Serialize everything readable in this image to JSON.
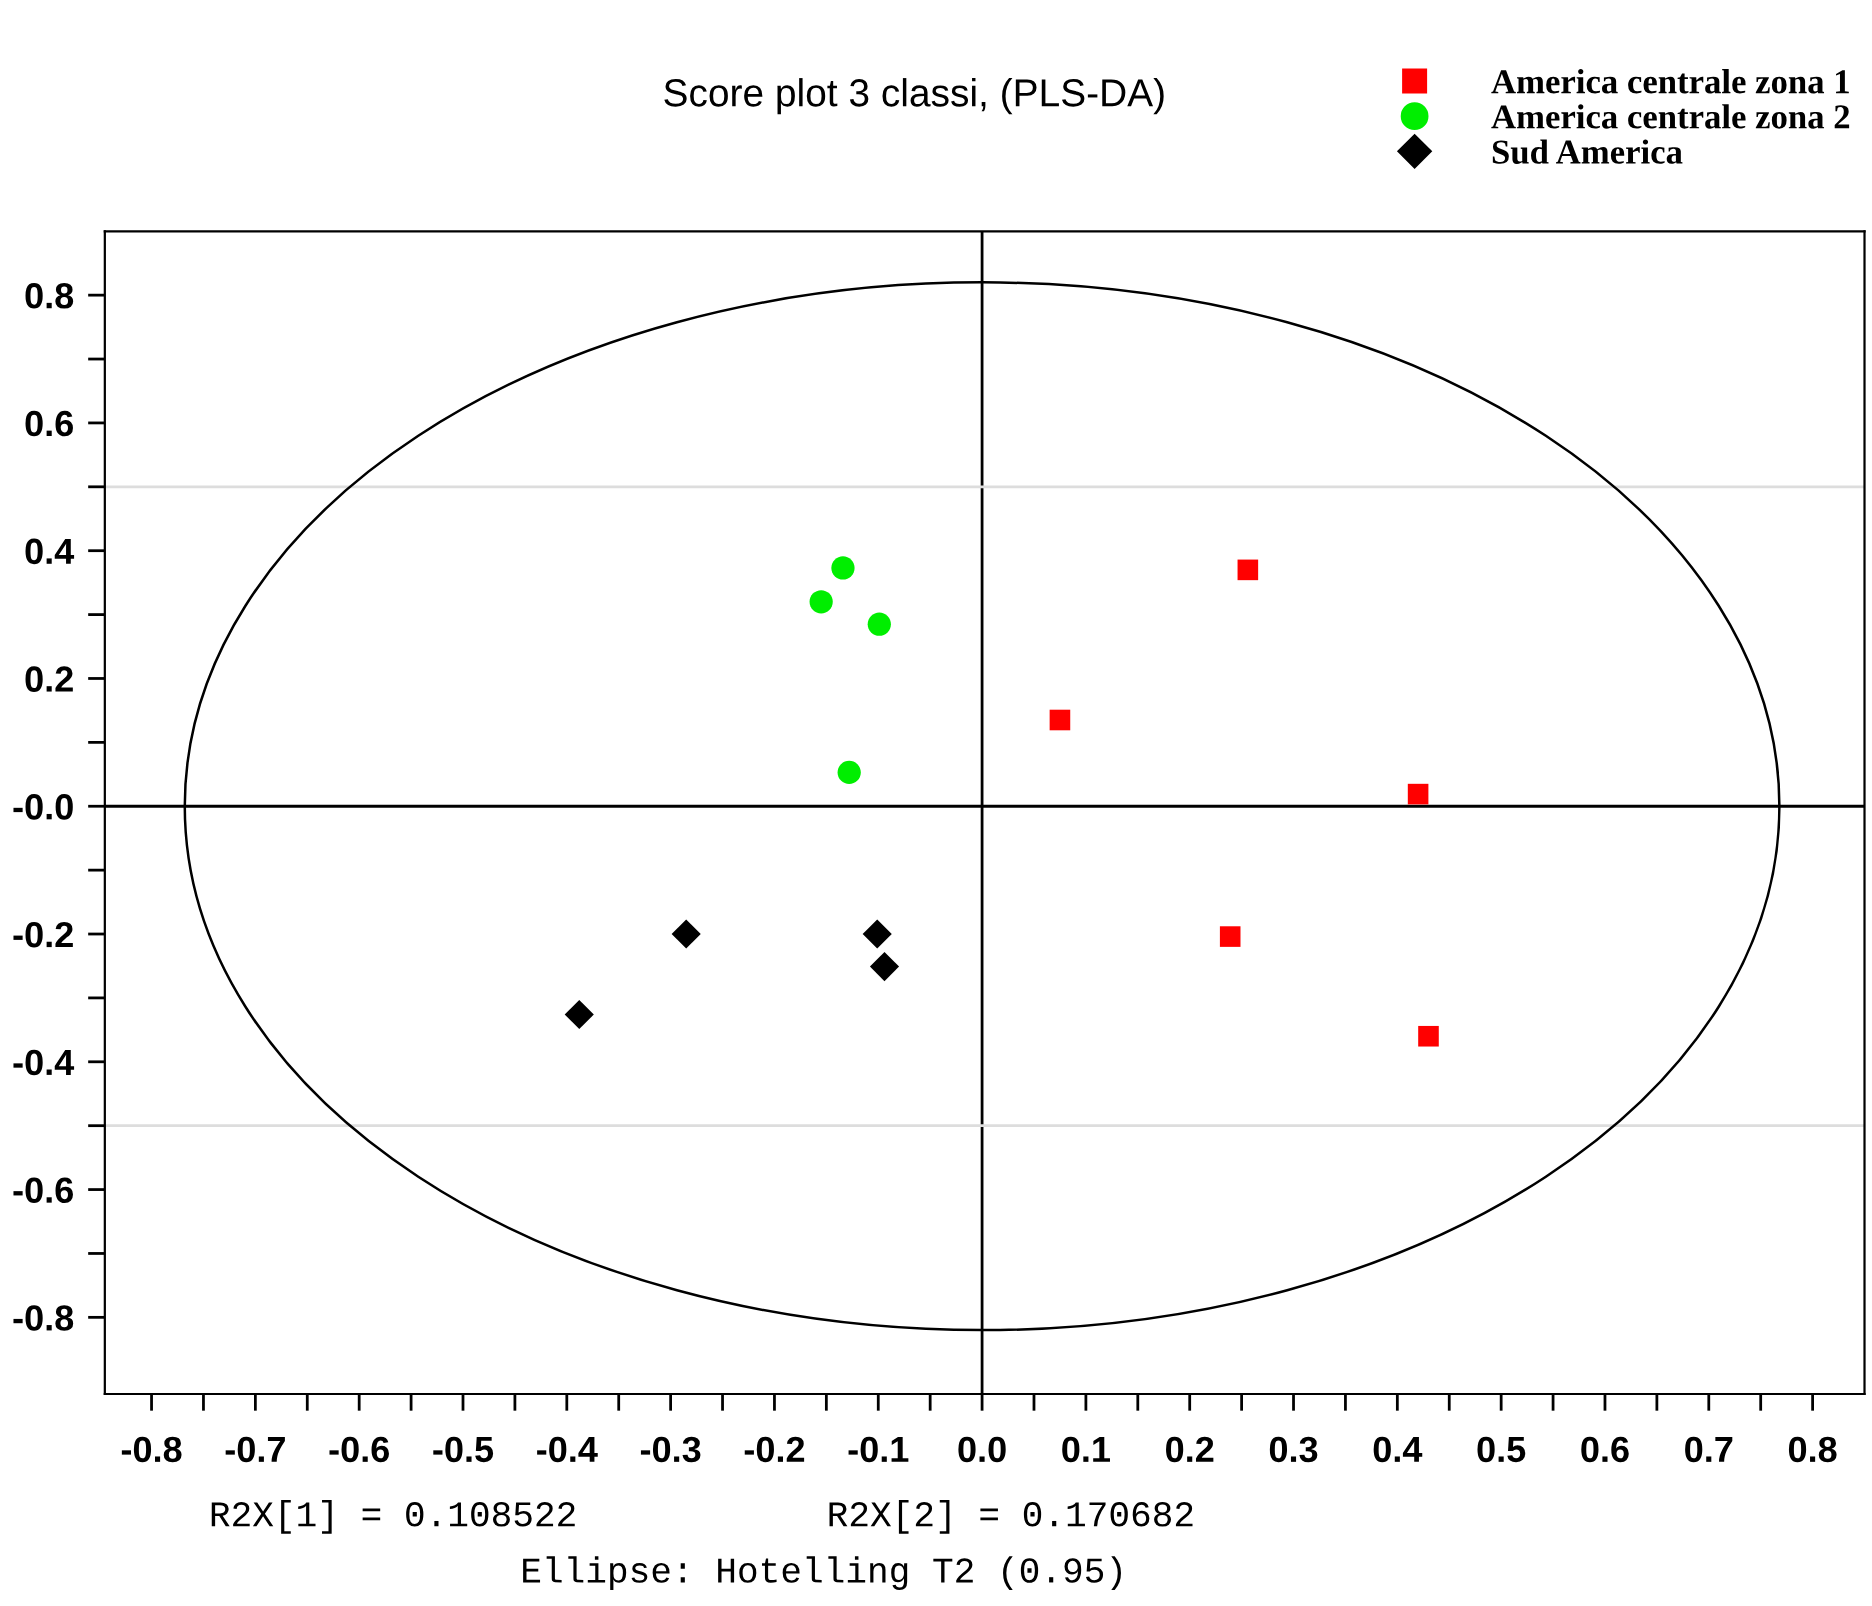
{
  "chart_data": {
    "type": "scatter",
    "title": "Score plot 3 classi, (PLS-DA)",
    "xlim": [
      -0.845,
      0.85
    ],
    "ylim": [
      -0.92,
      0.9
    ],
    "xticks": [
      -0.8,
      {
        "value": -0.75,
        "label": null
      },
      -0.7,
      {
        "value": -0.65,
        "label": null
      },
      -0.6,
      {
        "value": -0.55,
        "label": null
      },
      -0.5,
      {
        "value": -0.45,
        "label": null
      },
      -0.4,
      {
        "value": -0.35,
        "label": null
      },
      -0.3,
      {
        "value": -0.25,
        "label": null
      },
      -0.2,
      {
        "value": -0.15,
        "label": null
      },
      -0.1,
      {
        "value": -0.05,
        "label": null
      },
      {
        "value": 0,
        "label": "0.0"
      },
      {
        "value": 0.05,
        "label": null
      },
      0.1,
      {
        "value": 0.15,
        "label": null
      },
      0.2,
      {
        "value": 0.25,
        "label": null
      },
      0.3,
      {
        "value": 0.35,
        "label": null
      },
      0.4,
      {
        "value": 0.45,
        "label": null
      },
      0.5,
      {
        "value": 0.55,
        "label": null
      },
      0.6,
      {
        "value": 0.65,
        "label": null
      },
      0.7,
      {
        "value": 0.75,
        "label": null
      },
      0.8
    ],
    "yticks": [
      -0.8,
      {
        "value": -0.7,
        "label": null
      },
      -0.6,
      {
        "value": -0.5,
        "label": null
      },
      -0.4,
      {
        "value": -0.3,
        "label": null
      },
      -0.2,
      {
        "value": -0.1,
        "label": null
      },
      {
        "value": 0,
        "label": "-0.0"
      },
      {
        "value": 0.1,
        "label": null
      },
      0.2,
      {
        "value": 0.3,
        "label": null
      },
      0.4,
      {
        "value": 0.5,
        "label": null
      },
      0.6,
      {
        "value": 0.7,
        "label": null
      },
      0.8
    ],
    "series": [
      {
        "name": "America centrale zona 1",
        "color": "#ff0000",
        "marker": "square",
        "x": [
          0.256,
          0.075,
          0.42,
          0.239,
          0.43
        ],
        "values": [
          0.37,
          0.135,
          0.019,
          -0.204,
          -0.36
        ]
      },
      {
        "name": "America centrale zona 2",
        "color": "#00ee00",
        "marker": "circle",
        "x": [
          -0.134,
          -0.155,
          -0.099,
          -0.128
        ],
        "values": [
          0.373,
          0.32,
          0.285,
          0.053
        ]
      },
      {
        "name": "Sud America",
        "color": "#000000",
        "marker": "diamond",
        "x": [
          -0.388,
          -0.285,
          -0.101,
          -0.094
        ],
        "values": [
          -0.326,
          -0.2,
          -0.2,
          -0.251
        ]
      }
    ],
    "ref_lines": [
      {
        "axis": "x",
        "value": 0,
        "color": "#000000"
      },
      {
        "axis": "y",
        "value": 0,
        "color": "#000000"
      },
      {
        "axis": "y",
        "value": 0.5,
        "color": "#dddddd"
      },
      {
        "axis": "y",
        "value": -0.5,
        "color": "#dddddd"
      }
    ],
    "legend": "top right",
    "grid": false,
    "annotations": [
      "R2X[1] = 0.108522",
      "R2X[2] = 0.170682",
      "Ellipse: Hotelling T2 (0.95)"
    ]
  }
}
